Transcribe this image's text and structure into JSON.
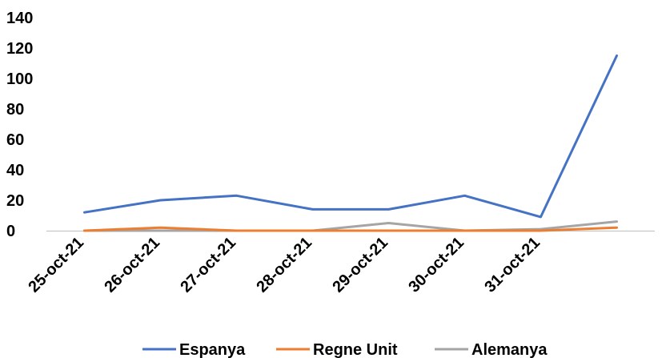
{
  "chart_data": {
    "type": "line",
    "categories": [
      "25-oct-21",
      "26-oct-21",
      "27-oct-21",
      "28-oct-21",
      "29-oct-21",
      "30-oct-21",
      "31-oct-21",
      ""
    ],
    "series": [
      {
        "name": "Espanya",
        "color": "#4472C4",
        "values": [
          12,
          20,
          23,
          14,
          14,
          23,
          9,
          115
        ]
      },
      {
        "name": "Regne Unit",
        "color": "#ED7D31",
        "values": [
          0,
          2,
          0,
          0,
          0,
          0,
          0,
          2
        ]
      },
      {
        "name": "Alemanya",
        "color": "#A5A5A5",
        "values": [
          0,
          0,
          0,
          0,
          5,
          0,
          1,
          6
        ]
      }
    ],
    "y_ticks": [
      "0",
      "20",
      "40",
      "60",
      "80",
      "100",
      "120",
      "140"
    ],
    "ylim": [
      0,
      140
    ],
    "grid": false,
    "legend_position": "bottom"
  }
}
